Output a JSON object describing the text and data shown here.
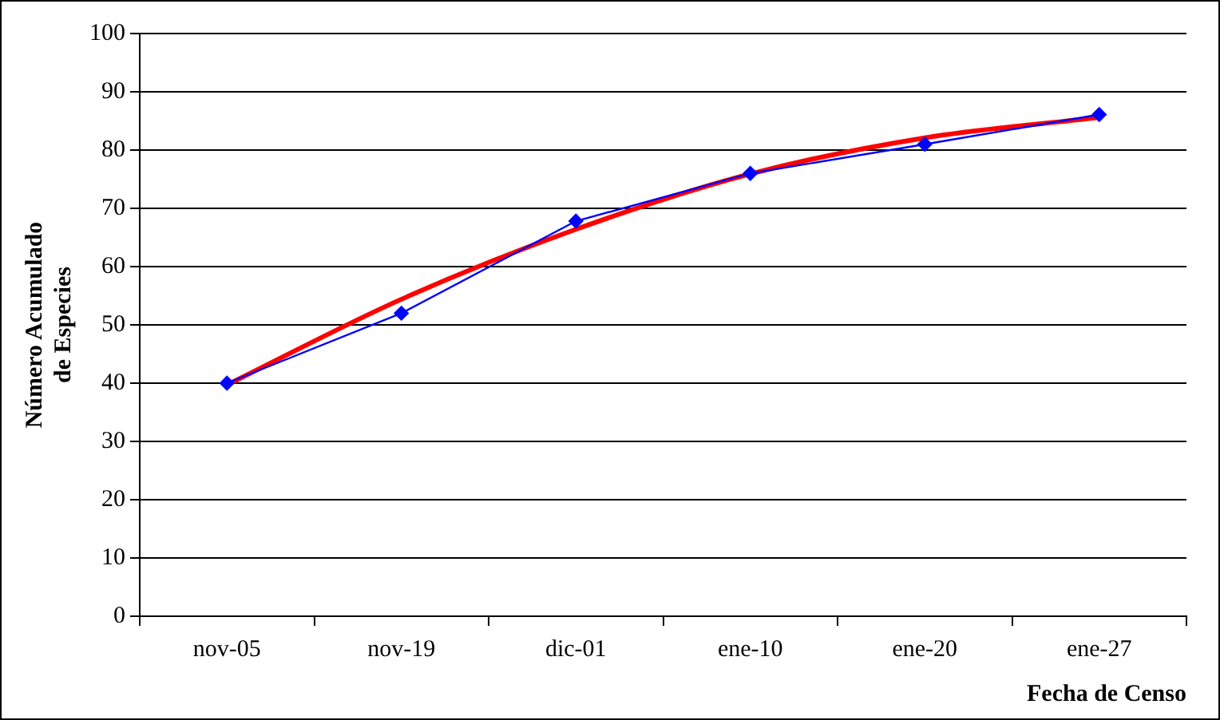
{
  "chart_data": {
    "type": "line",
    "xlabel": "Fecha de Censo",
    "ylabel": "Número Acumulado\nde Especies",
    "categories": [
      "nov-05",
      "nov-19",
      "dic-01",
      "ene-10",
      "ene-20",
      "ene-27"
    ],
    "series": [
      {
        "color": "#0000ff",
        "values": [
          40,
          52,
          67.8,
          76,
          81,
          86.1
        ],
        "marker": "diamond"
      },
      {
        "color": "#ff0000",
        "values": [
          39.7,
          54.4,
          66.4,
          75.9,
          82.1,
          85.6
        ],
        "marker": "none"
      }
    ],
    "ylim": [
      0,
      100
    ],
    "yticks": [
      0,
      10,
      20,
      30,
      40,
      50,
      60,
      70,
      80,
      90,
      100
    ],
    "grid": "y",
    "legend": false
  }
}
